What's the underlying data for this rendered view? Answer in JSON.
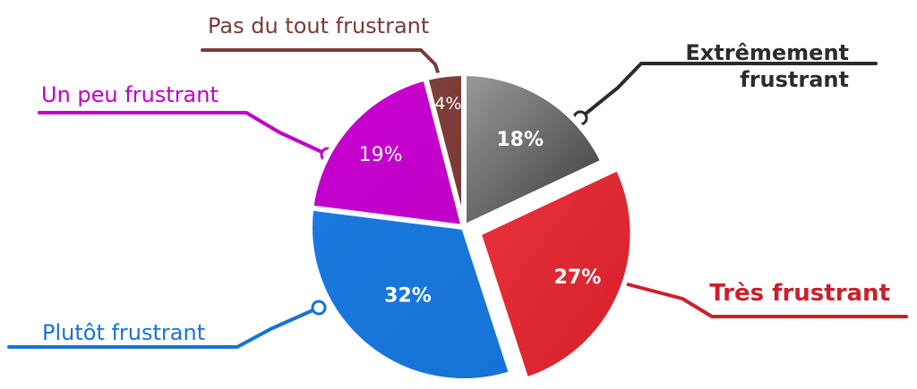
{
  "chart_data": {
    "type": "pie",
    "title": "",
    "slices": [
      {
        "label": "Extrêmement frustrant",
        "label_lines": [
          "Extrêmement",
          "frustrant"
        ],
        "value": 18,
        "display": "18%",
        "color": "#3a3a3a",
        "light": "#9a9a9a",
        "label_color": "#2b2b2b",
        "bold": true,
        "exploded": false
      },
      {
        "label": "Très frustrant",
        "label_lines": [
          "Très frustrant"
        ],
        "value": 27,
        "display": "27%",
        "color": "#d61f2a",
        "light": "#e8323c",
        "label_color": "#cc1f2b",
        "bold": true,
        "exploded": true
      },
      {
        "label": "Plutôt frustrant",
        "label_lines": [
          "Plutôt frustrant"
        ],
        "value": 32,
        "display": "32%",
        "color": "#1672d6",
        "light": "#1a78de",
        "label_color": "#1672d6",
        "bold": false,
        "exploded": false
      },
      {
        "label": "Un peu frustrant",
        "label_lines": [
          "Un peu frustrant"
        ],
        "value": 19,
        "display": "19%",
        "color": "#c000c8",
        "light": "#c800d0",
        "label_color": "#c000c8",
        "bold": false,
        "exploded": false
      },
      {
        "label": "Pas du tout frustrant",
        "label_lines": [
          "Pas du tout frustrant"
        ],
        "value": 4,
        "display": "4%",
        "color": "#7a3a36",
        "light": "#7f3e3a",
        "label_color": "#7a3a36",
        "bold": false,
        "exploded": false
      }
    ]
  }
}
